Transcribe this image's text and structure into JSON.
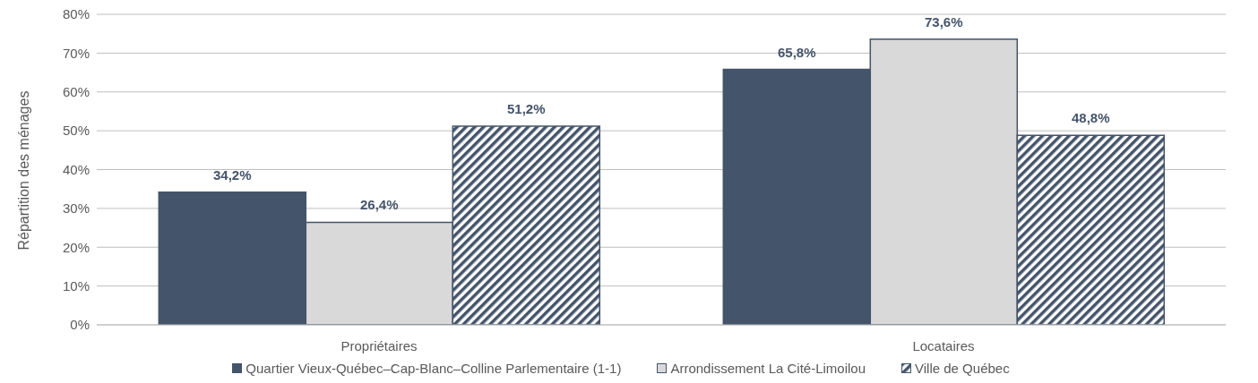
{
  "chart_data": {
    "type": "bar",
    "ylabel": "Répartition des ménages",
    "categories": [
      "Propriétaires",
      "Locataires"
    ],
    "series": [
      {
        "name": "Quartier Vieux-Québec–Cap-Blanc–Colline Parlementaire (1-1)",
        "color": "#44546a",
        "values": [
          34.2,
          65.8
        ],
        "value_labels": [
          "34,2%",
          "65,8%"
        ]
      },
      {
        "name": "Arrondissement La Cité-Limoilou",
        "color": "#d9d9d9",
        "values": [
          26.4,
          73.6
        ],
        "value_labels": [
          "26,4%",
          "73,6%"
        ]
      },
      {
        "name": "Ville de Québec",
        "color": "#44546a",
        "values": [
          51.2,
          48.8
        ],
        "value_labels": [
          "51,2%",
          "48,8%"
        ]
      }
    ],
    "ylim": [
      0,
      80
    ],
    "yticks": [
      {
        "value": 0,
        "label": "0%"
      },
      {
        "value": 10,
        "label": "10%"
      },
      {
        "value": 20,
        "label": "20%"
      },
      {
        "value": 30,
        "label": "30%"
      },
      {
        "value": 40,
        "label": "40%"
      },
      {
        "value": 50,
        "label": "50%"
      },
      {
        "value": 60,
        "label": "60%"
      },
      {
        "value": 70,
        "label": "70%"
      },
      {
        "value": 80,
        "label": "80%"
      }
    ],
    "grid": "y",
    "legend": "bottom"
  }
}
